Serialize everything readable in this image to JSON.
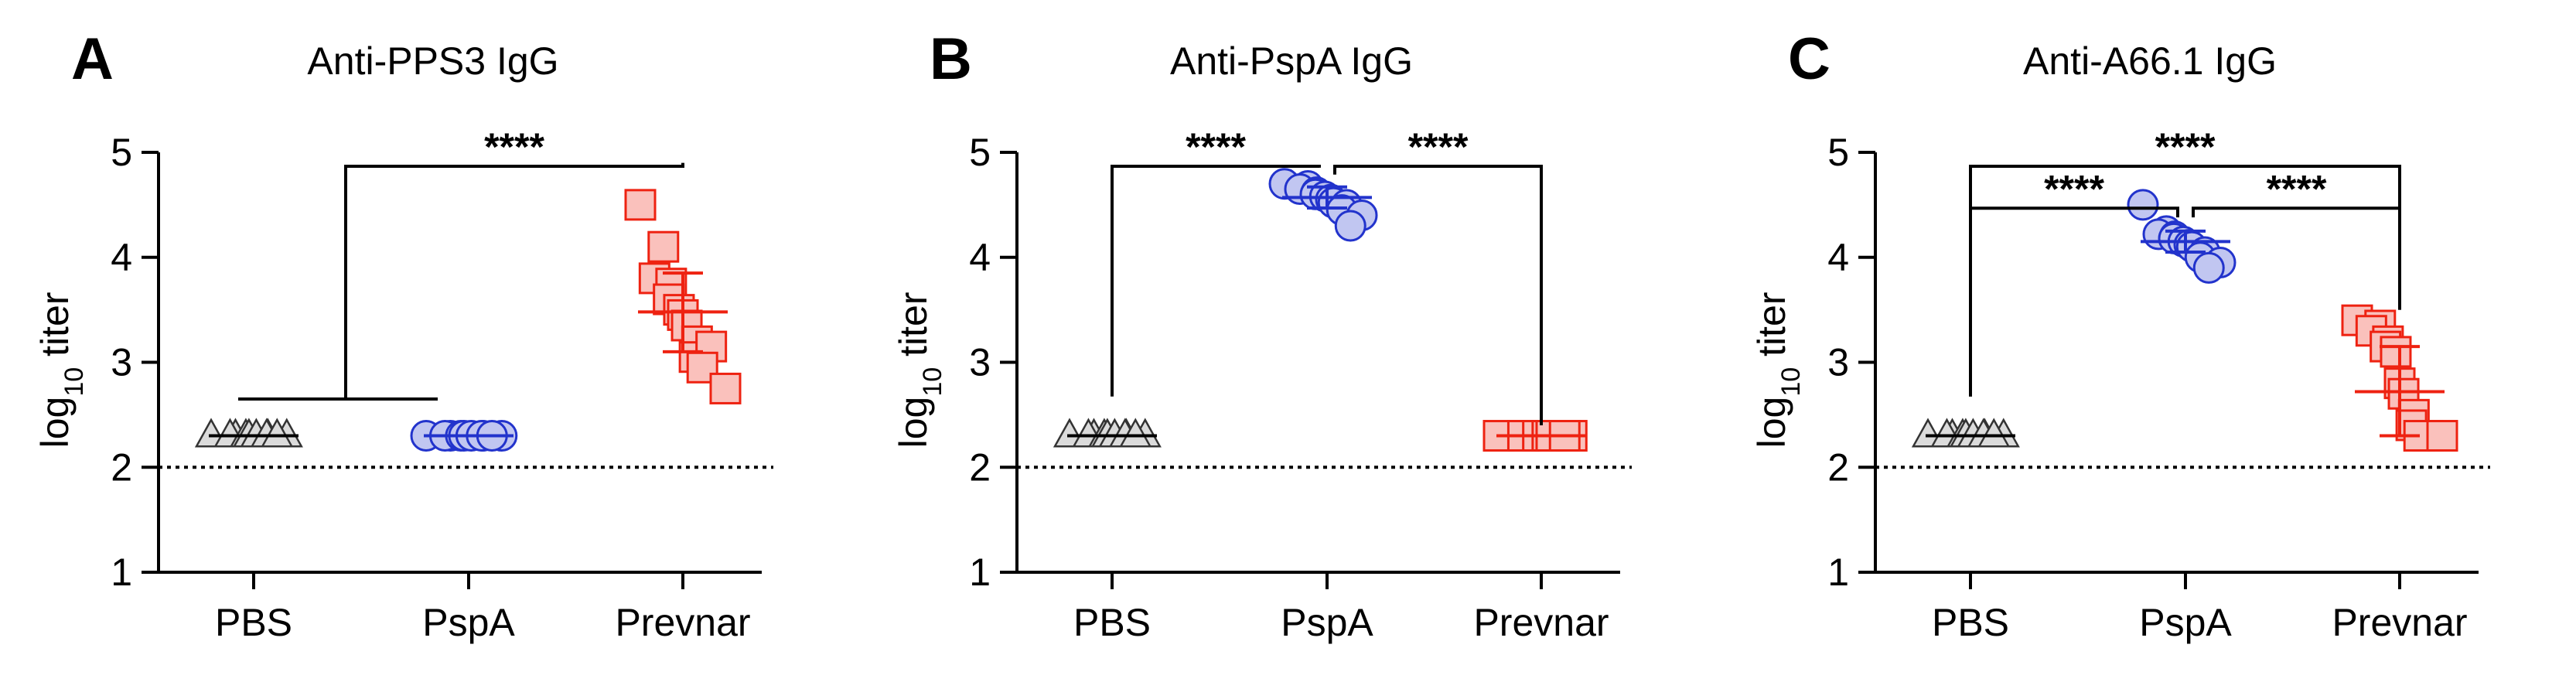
{
  "chart_data": [
    {
      "type": "scatter",
      "panel": "A",
      "title": "Anti-PPS3 IgG",
      "ylabel": "log10 titer",
      "ylim": [
        1,
        5
      ],
      "yticks": [
        1,
        2,
        3,
        4,
        5
      ],
      "limit_of_detection": 2,
      "categories": [
        "PBS",
        "PspA",
        "Prevnar"
      ],
      "series": [
        {
          "color": "#808080",
          "marker": "triangle",
          "points": [
            2.3,
            2.3,
            2.3,
            2.3,
            2.3,
            2.3,
            2.3,
            2.3,
            2.3,
            2.3
          ],
          "mean": 2.3,
          "err_low": 2.3,
          "err_high": 2.3
        },
        {
          "color": "#2233cc",
          "marker": "circle",
          "points": [
            2.3,
            2.3,
            2.3,
            2.3,
            2.3,
            2.3,
            2.3,
            2.3,
            2.3,
            2.3
          ],
          "mean": 2.3,
          "err_low": 2.3,
          "err_high": 2.3
        },
        {
          "color": "#ee2211",
          "marker": "square",
          "points": [
            4.5,
            4.1,
            3.8,
            3.75,
            3.6,
            3.5,
            3.45,
            3.35,
            3.2,
            3.05,
            3.15,
            2.95,
            2.75
          ],
          "mean": 3.48,
          "err_low": 3.1,
          "err_high": 3.85
        }
      ],
      "significance": [
        {
          "from": [
            0,
            1
          ],
          "to": 2,
          "bracket": "grouped",
          "label": "****",
          "y": 5.0
        }
      ]
    },
    {
      "type": "scatter",
      "panel": "B",
      "title": "Anti-PspA IgG",
      "ylabel": "log10 titer",
      "ylim": [
        1,
        5
      ],
      "yticks": [
        1,
        2,
        3,
        4,
        5
      ],
      "limit_of_detection": 2,
      "categories": [
        "PBS",
        "PspA",
        "Prevnar"
      ],
      "series": [
        {
          "color": "#808080",
          "marker": "triangle",
          "points": [
            2.3,
            2.3,
            2.3,
            2.3,
            2.3,
            2.3,
            2.3,
            2.3,
            2.3,
            2.3
          ],
          "mean": 2.3,
          "err_low": 2.3,
          "err_high": 2.3
        },
        {
          "color": "#2233cc",
          "marker": "circle",
          "points": [
            4.7,
            4.68,
            4.65,
            4.62,
            4.6,
            4.58,
            4.55,
            4.52,
            4.5,
            4.45,
            4.4,
            4.3
          ],
          "mean": 4.57,
          "err_low": 4.47,
          "err_high": 4.67
        },
        {
          "color": "#ee2211",
          "marker": "square",
          "points": [
            2.3,
            2.3,
            2.3,
            2.3,
            2.3,
            2.3,
            2.3,
            2.3
          ],
          "mean": 2.3,
          "err_low": 2.3,
          "err_high": 2.3
        }
      ],
      "significance": [
        {
          "from": 0,
          "to": 1,
          "label": "****",
          "y": 5.0
        },
        {
          "from": 1,
          "to": 2,
          "label": "****",
          "y": 5.0
        }
      ]
    },
    {
      "type": "scatter",
      "panel": "C",
      "title": "Anti-A66.1 IgG",
      "ylabel": "log10 titer",
      "ylim": [
        1,
        5
      ],
      "yticks": [
        1,
        2,
        3,
        4,
        5
      ],
      "limit_of_detection": 2,
      "categories": [
        "PBS",
        "PspA",
        "Prevnar"
      ],
      "series": [
        {
          "color": "#808080",
          "marker": "triangle",
          "points": [
            2.3,
            2.3,
            2.3,
            2.3,
            2.3,
            2.3,
            2.3,
            2.3,
            2.3,
            2.3
          ],
          "mean": 2.3,
          "err_low": 2.3,
          "err_high": 2.3
        },
        {
          "color": "#2233cc",
          "marker": "circle",
          "points": [
            4.5,
            4.25,
            4.22,
            4.2,
            4.18,
            4.15,
            4.12,
            4.1,
            4.05,
            4.0,
            3.95,
            3.9
          ],
          "mean": 4.15,
          "err_low": 4.05,
          "err_high": 4.25
        },
        {
          "color": "#ee2211",
          "marker": "square",
          "points": [
            3.4,
            3.35,
            3.3,
            3.2,
            3.15,
            3.1,
            2.8,
            2.7,
            2.5,
            2.4,
            2.3,
            2.3,
            2.3
          ],
          "mean": 2.72,
          "err_low": 2.3,
          "err_high": 3.15
        }
      ],
      "significance": [
        {
          "from": 0,
          "to": 2,
          "label": "****",
          "y": 5.0
        },
        {
          "from": 0,
          "to": 1,
          "label": "****",
          "y": 4.6
        },
        {
          "from": 1,
          "to": 2,
          "label": "****",
          "y": 4.6
        }
      ]
    }
  ],
  "y_axis_title": {
    "main": "log",
    "subscript": "10",
    "rest": " titer"
  }
}
